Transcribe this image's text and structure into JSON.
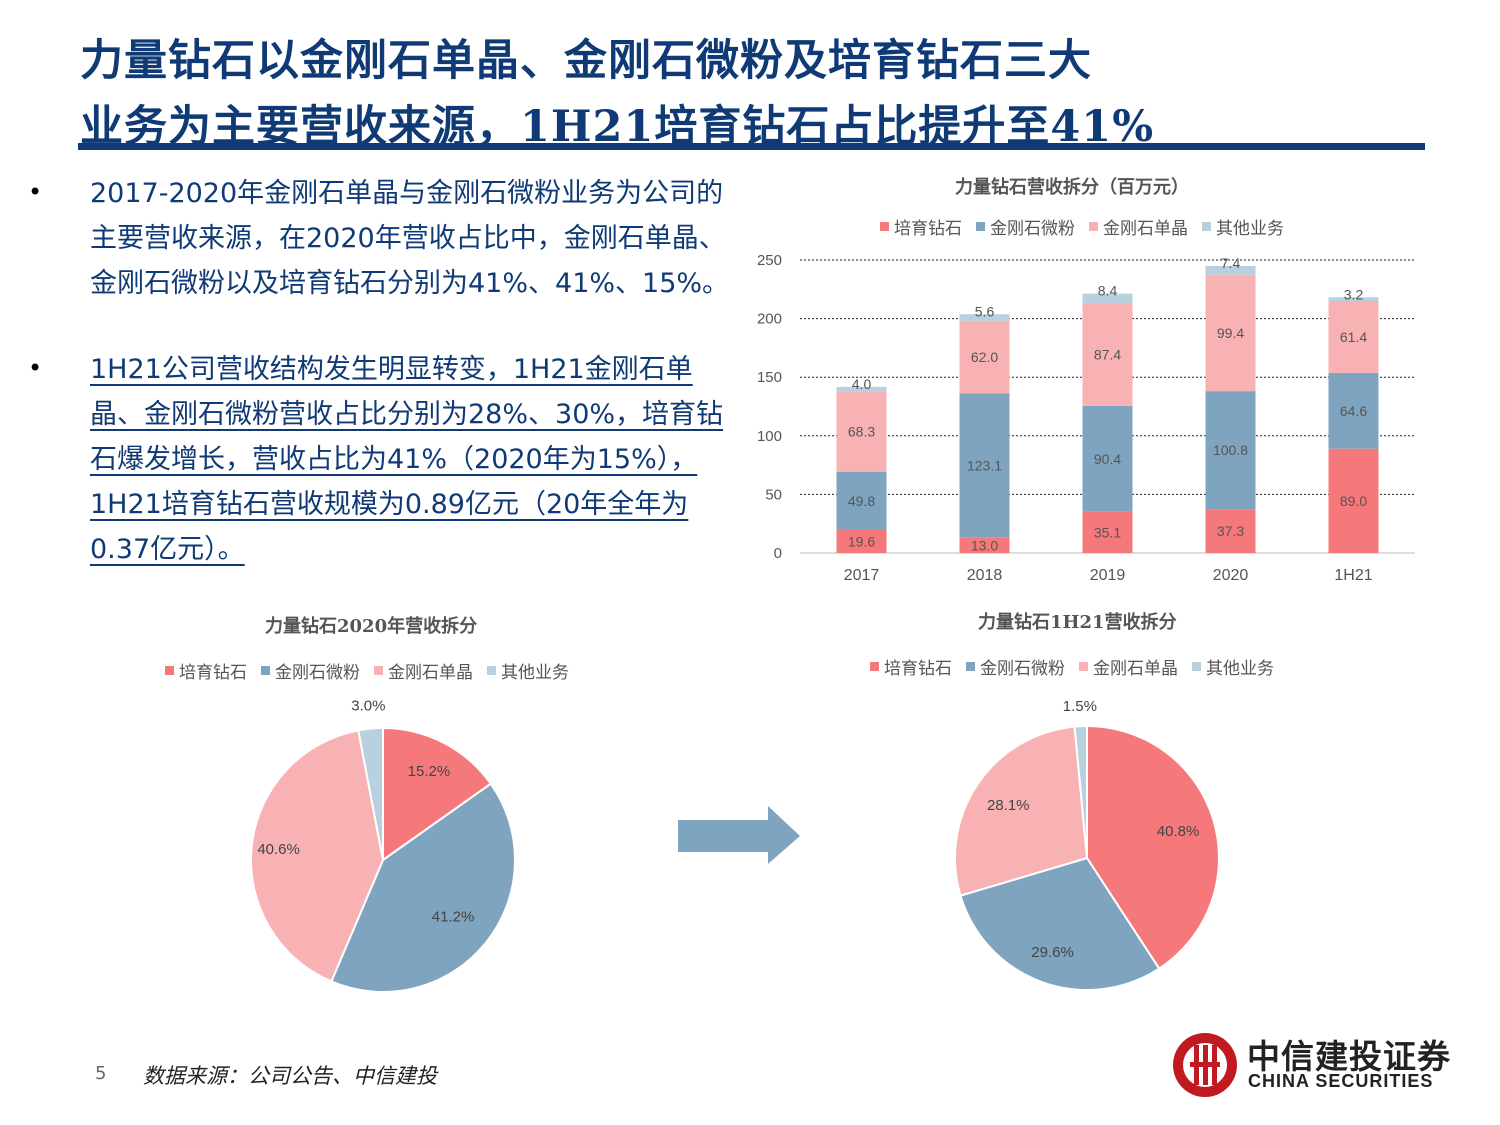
{
  "title": {
    "line1": "力量钻石以金刚石单晶、金刚石微粉及培育钻石三大",
    "line2": "业务为主要营收来源，1H21培育钻石占比提升至41%"
  },
  "bullets": [
    {
      "marker": "•",
      "text": "2017-2020年金刚石单晶与金刚石微粉业务为公司的主要营收来源，在2020年营收占比中，金刚石单晶、金刚石微粉以及培育钻石分别为41%、41%、15%。"
    },
    {
      "marker": "•",
      "text": "1H21公司营收结构发生明显转变，1H21金刚石单晶、金刚石微粉营收占比分别为28%、30%，培育钻石爆发增长，营收占比为41%（2020年为15%），1H21培育钻石营收规模为0.89亿元（20年全年为0.37亿元）。"
    }
  ],
  "legend_labels": [
    "培育钻石",
    "金刚石微粉",
    "金刚石单晶",
    "其他业务"
  ],
  "colors": {
    "lab": "#f5787a",
    "powder": "#7fa4c0",
    "single": "#f8b2b4",
    "other": "#b9d0de",
    "brand": "#0f3a76",
    "logo": "#c01920"
  },
  "chart_data": [
    {
      "type": "bar",
      "stacked": true,
      "title": "力量钻石营收拆分（百万元）",
      "categories": [
        "2017",
        "2018",
        "2019",
        "2020",
        "1H21"
      ],
      "series": [
        {
          "name": "培育钻石",
          "values": [
            19.6,
            13.0,
            35.1,
            37.3,
            89.0
          ]
        },
        {
          "name": "金刚石微粉",
          "values": [
            49.8,
            123.1,
            90.4,
            100.8,
            64.6
          ]
        },
        {
          "name": "金刚石单晶",
          "values": [
            68.3,
            62.0,
            87.4,
            99.4,
            61.4
          ]
        },
        {
          "name": "其他业务",
          "values": [
            4.0,
            5.6,
            8.4,
            7.4,
            3.2
          ]
        }
      ],
      "value_labels": [
        [
          "19.6",
          "13.0",
          "35.1",
          "37.3",
          "89.0"
        ],
        [
          "49.8",
          "123.1",
          "90.4",
          "100.8",
          "64.6"
        ],
        [
          "68.3",
          "62.0",
          "87.4",
          "99.4",
          "61.4"
        ],
        [
          "4.0",
          "5.6",
          "8.4",
          "7.4",
          "3.2"
        ]
      ],
      "ylim": [
        0,
        250
      ],
      "yticks": [
        "0",
        "50",
        "100",
        "150",
        "200",
        "250"
      ],
      "grid": true,
      "legend": "top"
    },
    {
      "type": "pie",
      "title": "力量钻石2020年营收拆分",
      "labels": [
        "培育钻石",
        "金刚石微粉",
        "金刚石单晶",
        "其他业务"
      ],
      "values": [
        15.2,
        41.2,
        40.6,
        3.0
      ],
      "value_labels": [
        "15.2%",
        "41.2%",
        "40.6%",
        "3.0%"
      ],
      "legend": "top"
    },
    {
      "type": "pie",
      "title": "力量钻石1H21营收拆分",
      "labels": [
        "培育钻石",
        "金刚石微粉",
        "金刚石单晶",
        "其他业务"
      ],
      "values": [
        40.8,
        29.6,
        28.1,
        1.5
      ],
      "value_labels": [
        "40.8%",
        "29.6%",
        "28.1%",
        "1.5%"
      ],
      "legend": "top"
    }
  ],
  "footer": {
    "page": "5",
    "source": "数据来源：公司公告、中信建投"
  },
  "logo": {
    "cn": "中信建投证券",
    "en": "CHINA SECURITIES"
  }
}
